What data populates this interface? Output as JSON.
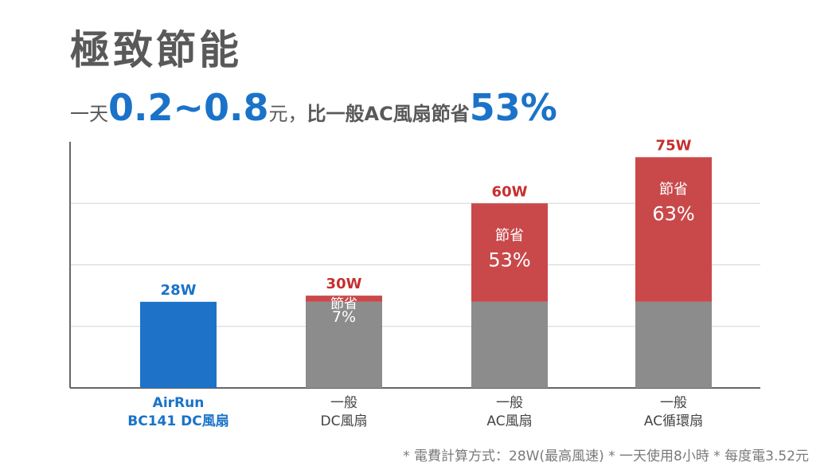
{
  "title": "極致節能",
  "subtitle": {
    "prefix": "一天",
    "range": "0.2~0.8",
    "unit": "元",
    "sep": "，",
    "compare": "比一般AC風扇節省",
    "percent": "53%"
  },
  "footnote": "* 電費計算方式：28W(最高風速) * 一天使用8小時 * 每度電3.52元",
  "colors": {
    "blue": "#1e73c8",
    "grey": "#8c8c8c",
    "red": "#c9494b",
    "label_red": "#c62f2f",
    "label_blue": "#1a73c8",
    "axis": "#666666",
    "grid": "#d4d4d4"
  },
  "chart_data": {
    "type": "bar",
    "ylim": [
      0,
      80
    ],
    "grid": true,
    "categories": [
      {
        "line1": "AirRun",
        "line2": "BC141 DC風扇"
      },
      {
        "line1": "一般",
        "line2": "DC風扇"
      },
      {
        "line1": "一般",
        "line2": "AC風扇"
      },
      {
        "line1": "一般",
        "line2": "AC循環扇"
      }
    ],
    "bars": [
      {
        "base": 28,
        "total": 28,
        "total_label": "28W",
        "save_title": "",
        "save_pct": ""
      },
      {
        "base": 28,
        "total": 30,
        "total_label": "30W",
        "save_title": "節省",
        "save_pct": "7%"
      },
      {
        "base": 28,
        "total": 60,
        "total_label": "60W",
        "save_title": "節省",
        "save_pct": "53%"
      },
      {
        "base": 28,
        "total": 75,
        "total_label": "75W",
        "save_title": "節省",
        "save_pct": "63%"
      }
    ]
  }
}
